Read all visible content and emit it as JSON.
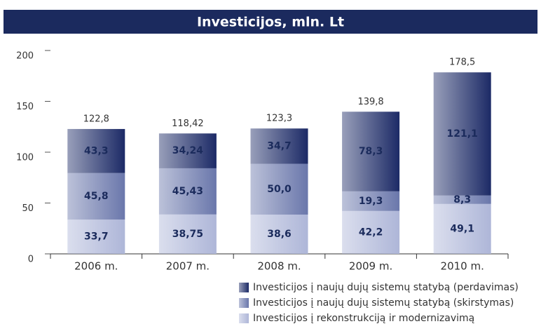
{
  "chart_data": {
    "type": "stacked_bar",
    "title": "Investicijos, mln. Lt",
    "categories": [
      "2006 m.",
      "2007 m.",
      "2008 m.",
      "2009 m.",
      "2010 m."
    ],
    "series": [
      {
        "name": "Investicijos į rekonstrukciją ir modernizavimą",
        "color": "#aeb6d8",
        "values": [
          33.7,
          38.75,
          38.6,
          42.2,
          49.1
        ],
        "value_labels": [
          "33,7",
          "38,75",
          "38,6",
          "42,2",
          "49,1"
        ]
      },
      {
        "name": "Investicijos į naujų dujų sistemų statybą (skirstymas)",
        "color": "#6a77ab",
        "values": [
          45.8,
          45.43,
          50.0,
          19.3,
          8.3
        ],
        "value_labels": [
          "45,8",
          "45,43",
          "50,0",
          "19,3",
          "8,3"
        ]
      },
      {
        "name": "Investicijos į naujų dujų sistemų statybą (perdavimas)",
        "color": "#1c2a66",
        "values": [
          43.3,
          34.24,
          34.7,
          78.3,
          121.1
        ],
        "value_labels": [
          "43,3",
          "34,24",
          "34,7",
          "78,3",
          "121,1"
        ]
      }
    ],
    "totals": [
      122.8,
      118.42,
      123.3,
      139.8,
      178.5
    ],
    "total_labels": [
      "122,8",
      "118,42",
      "123,3",
      "139,8",
      "178,5"
    ],
    "ylim": [
      0,
      200
    ],
    "yticks": [
      0,
      50,
      100,
      150,
      200
    ]
  }
}
